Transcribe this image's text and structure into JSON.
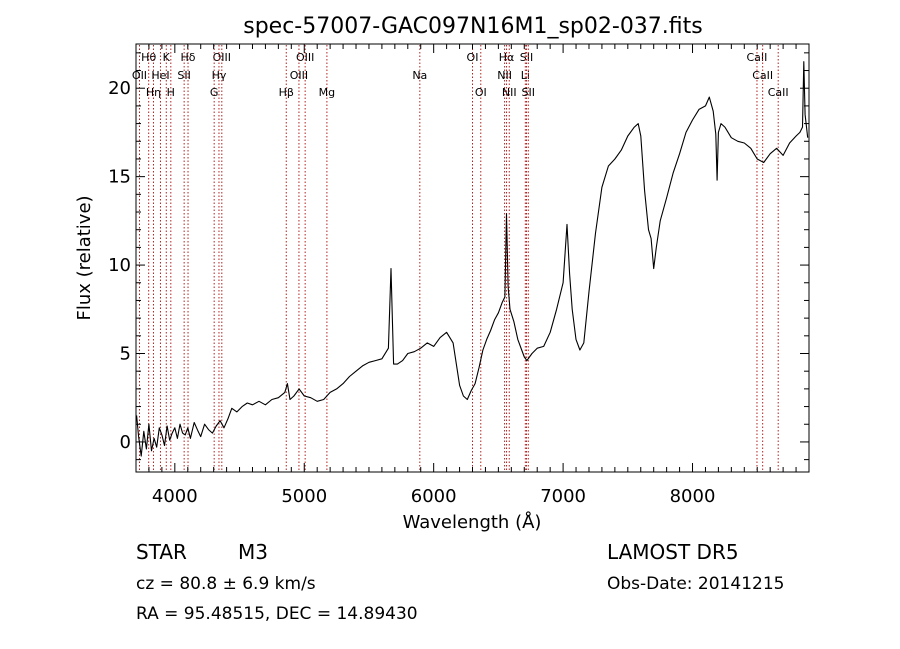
{
  "chart_data": {
    "type": "line",
    "title": "spec-57007-GAC097N16M1_sp02-037.fits",
    "xlabel": "Wavelength (Å)",
    "ylabel": "Flux (relative)",
    "xlim": [
      3700,
      8900
    ],
    "ylim": [
      -1.7,
      22.5
    ],
    "x_ticks": [
      4000,
      5000,
      6000,
      7000,
      8000
    ],
    "y_ticks": [
      0,
      5,
      10,
      15,
      20
    ],
    "grid": false,
    "series": [
      {
        "x": [
          3705,
          3720,
          3740,
          3760,
          3780,
          3800,
          3820,
          3840,
          3860,
          3880,
          3900,
          3920,
          3940,
          3960,
          3980,
          4000,
          4020,
          4040,
          4060,
          4080,
          4100,
          4120,
          4150,
          4180,
          4200,
          4230,
          4260,
          4290,
          4320,
          4350,
          4380,
          4410,
          4440,
          4480,
          4520,
          4560,
          4600,
          4650,
          4700,
          4750,
          4800,
          4850,
          4870,
          4890,
          4920,
          4960,
          5000,
          5050,
          5100,
          5150,
          5200,
          5250,
          5300,
          5350,
          5400,
          5450,
          5500,
          5550,
          5600,
          5650,
          5670,
          5690,
          5720,
          5760,
          5800,
          5850,
          5900,
          5950,
          6000,
          6050,
          6100,
          6150,
          6200,
          6230,
          6260,
          6290,
          6320,
          6350,
          6380,
          6410,
          6440,
          6470,
          6500,
          6530,
          6550,
          6563,
          6575,
          6590,
          6620,
          6650,
          6680,
          6700,
          6720,
          6760,
          6800,
          6850,
          6900,
          6950,
          7000,
          7030,
          7050,
          7070,
          7100,
          7130,
          7160,
          7200,
          7250,
          7300,
          7350,
          7400,
          7450,
          7500,
          7550,
          7580,
          7600,
          7630,
          7660,
          7680,
          7700,
          7720,
          7750,
          7800,
          7850,
          7900,
          7950,
          8000,
          8050,
          8100,
          8130,
          8160,
          8180,
          8190,
          8200,
          8220,
          8250,
          8300,
          8350,
          8400,
          8450,
          8500,
          8550,
          8600,
          8650,
          8700,
          8750,
          8800,
          8830,
          8850,
          8860,
          8870,
          8890
        ],
        "y": [
          1.5,
          0.3,
          -0.8,
          0.6,
          -0.4,
          1.0,
          -0.5,
          0.2,
          -0.3,
          0.8,
          0.4,
          -0.2,
          0.9,
          0.1,
          0.5,
          0.8,
          0.2,
          1.0,
          0.5,
          0.4,
          0.8,
          0.2,
          1.1,
          0.6,
          0.3,
          1.0,
          0.7,
          0.5,
          0.9,
          1.2,
          0.8,
          1.3,
          1.9,
          1.7,
          2.0,
          2.2,
          2.1,
          2.3,
          2.1,
          2.4,
          2.5,
          2.8,
          3.3,
          2.4,
          2.6,
          3.0,
          2.6,
          2.5,
          2.3,
          2.4,
          2.8,
          3.0,
          3.3,
          3.7,
          4.0,
          4.3,
          4.5,
          4.6,
          4.7,
          5.3,
          9.8,
          4.4,
          4.4,
          4.6,
          5.0,
          5.1,
          5.3,
          5.6,
          5.4,
          5.9,
          6.2,
          5.6,
          3.2,
          2.6,
          2.4,
          2.9,
          3.3,
          4.2,
          5.2,
          5.8,
          6.3,
          6.9,
          7.3,
          7.9,
          8.2,
          12.9,
          8.8,
          7.5,
          6.8,
          5.8,
          5.2,
          4.8,
          4.6,
          5.0,
          5.3,
          5.4,
          6.2,
          7.5,
          9.0,
          12.3,
          9.5,
          7.5,
          5.8,
          5.2,
          5.6,
          8.5,
          11.8,
          14.4,
          15.6,
          16.0,
          16.5,
          17.3,
          17.8,
          18.0,
          17.3,
          14.2,
          12.0,
          11.5,
          9.8,
          11.0,
          12.5,
          13.8,
          15.2,
          16.3,
          17.5,
          18.2,
          18.8,
          19.0,
          19.5,
          18.7,
          17.4,
          14.8,
          17.5,
          18.0,
          17.8,
          17.2,
          17.0,
          16.9,
          16.6,
          16.0,
          15.8,
          16.3,
          16.6,
          16.2,
          16.9,
          17.3,
          17.5,
          17.8,
          21.5,
          18.5,
          17.2
        ]
      }
    ],
    "line_markers": [
      {
        "label": "Hθ",
        "x": 3798,
        "row": 0
      },
      {
        "label": "OII",
        "x": 3727,
        "row": 1
      },
      {
        "label": "Hη",
        "x": 3835,
        "row": 2
      },
      {
        "label": "K",
        "x": 3934,
        "row": 0
      },
      {
        "label": "HeI",
        "x": 3889,
        "row": 1
      },
      {
        "label": "H",
        "x": 3969,
        "row": 2
      },
      {
        "label": "Hδ",
        "x": 4102,
        "row": 0
      },
      {
        "label": "SII",
        "x": 4072,
        "row": 1
      },
      {
        "label": "OIII",
        "x": 4363,
        "row": 0
      },
      {
        "label": "Hγ",
        "x": 4341,
        "row": 1
      },
      {
        "label": "G",
        "x": 4304,
        "row": 2
      },
      {
        "label": "OIII",
        "x": 5007,
        "row": 0
      },
      {
        "label": "OIII",
        "x": 4959,
        "row": 1
      },
      {
        "label": "Hβ",
        "x": 4861,
        "row": 2
      },
      {
        "label": "Mg",
        "x": 5175,
        "row": 2
      },
      {
        "label": "Na",
        "x": 5893,
        "row": 1
      },
      {
        "label": "OI",
        "x": 6300,
        "row": 0
      },
      {
        "label": "OI",
        "x": 6364,
        "row": 2
      },
      {
        "label": "Hα",
        "x": 6563,
        "row": 0
      },
      {
        "label": "NII",
        "x": 6548,
        "row": 1
      },
      {
        "label": "NII",
        "x": 6584,
        "row": 2
      },
      {
        "label": "SII",
        "x": 6717,
        "row": 0
      },
      {
        "label": "Li",
        "x": 6708,
        "row": 1
      },
      {
        "label": "SII",
        "x": 6731,
        "row": 2
      },
      {
        "label": "CaII",
        "x": 8498,
        "row": 0
      },
      {
        "label": "CaII",
        "x": 8542,
        "row": 1
      },
      {
        "label": "CaII",
        "x": 8662,
        "row": 2
      }
    ]
  },
  "info": {
    "class_label": "STAR",
    "subclass": "M3",
    "survey": "LAMOST DR5",
    "cz": "cz = 80.8 ± 6.9 km/s",
    "obs_date": "Obs-Date: 20141215",
    "coords": "RA =  95.48515, DEC =  14.89430"
  },
  "colors": {
    "spectrum": "#000000",
    "marker_line": "#b22222",
    "axes": "#000000"
  }
}
